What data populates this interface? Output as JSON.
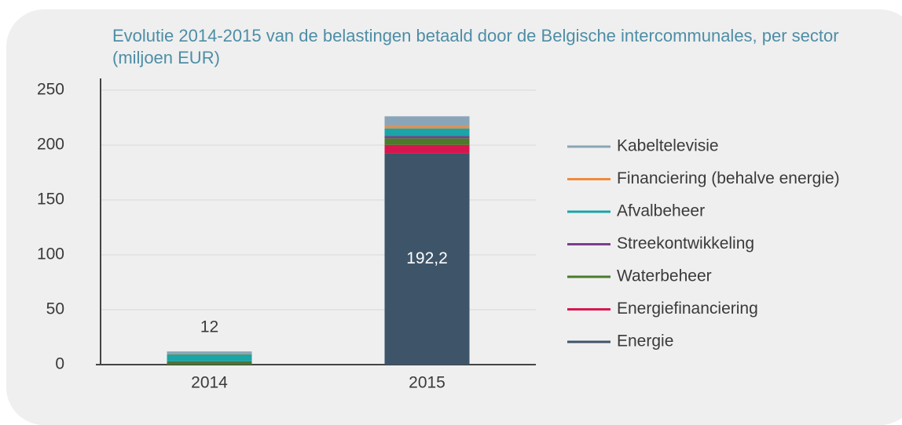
{
  "chart_data": {
    "type": "stacked_bar",
    "title": "Evolutie 2014-2015 van de belastingen betaald door de Belgische intercommunales, per sector (miljoen EUR)",
    "categories": [
      "2014",
      "2015"
    ],
    "series": [
      {
        "name": "Energie",
        "color": "#3e5569",
        "values": [
          0,
          192.2
        ],
        "value_labels": [
          null,
          "192,2"
        ]
      },
      {
        "name": "Energiefinanciering",
        "color": "#d6174f",
        "values": [
          0,
          8
        ]
      },
      {
        "name": "Waterbeheer",
        "color": "#4a7a2a",
        "values": [
          2.5,
          6
        ]
      },
      {
        "name": "Streekontwikkeling",
        "color": "#7b3f8c",
        "values": [
          0.5,
          2
        ]
      },
      {
        "name": "Afvalbeheer",
        "color": "#1aa5a8",
        "values": [
          6.5,
          7
        ]
      },
      {
        "name": "Financiering (behalve energie)",
        "color": "#f08a3e",
        "values": [
          0.5,
          2
        ]
      },
      {
        "name": "Kabeltelevisie",
        "color": "#8aa5b8",
        "values": [
          2,
          9
        ]
      }
    ],
    "totals": [
      12,
      null
    ],
    "ylim": [
      0,
      250
    ],
    "yticks": [
      0,
      50,
      100,
      150,
      200,
      250
    ],
    "grid": true
  }
}
